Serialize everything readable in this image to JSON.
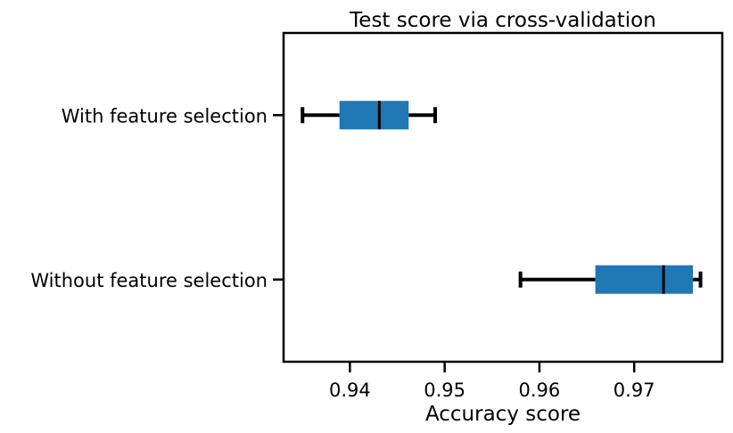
{
  "chart_data": {
    "type": "boxplot",
    "orientation": "horizontal",
    "title": "Test score via cross-validation",
    "xlabel": "Accuracy score",
    "ylabel": "",
    "xlim": [
      0.933,
      0.9793
    ],
    "xticks": [
      0.94,
      0.95,
      0.96,
      0.97
    ],
    "xtick_labels": [
      "0.94",
      "0.95",
      "0.96",
      "0.97"
    ],
    "grid": false,
    "box_color": "#1f77b4",
    "categories": [
      "With feature selection",
      "Without feature selection"
    ],
    "boxes": [
      {
        "label": "With feature selection",
        "whislo": 0.935,
        "q1": 0.9389,
        "med": 0.9431,
        "q3": 0.9462,
        "whishi": 0.949
      },
      {
        "label": "Without feature selection",
        "whislo": 0.958,
        "q1": 0.9659,
        "med": 0.9731,
        "q3": 0.9762,
        "whishi": 0.977
      }
    ]
  }
}
